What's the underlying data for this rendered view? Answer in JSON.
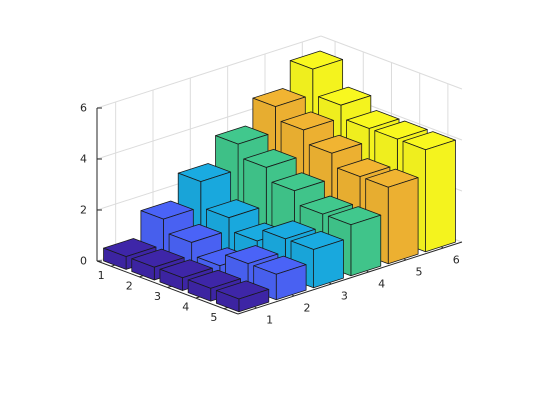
{
  "chart_data": {
    "type": "bar3",
    "title": "",
    "xlabel": "",
    "ylabel": "",
    "zlabel": "",
    "x_ticks": [
      "1",
      "2",
      "3",
      "4",
      "5",
      "6"
    ],
    "y_ticks": [
      "1",
      "2",
      "3",
      "4",
      "5"
    ],
    "z_ticks": [
      "0",
      "2",
      "4",
      "6"
    ],
    "xlim": [
      0.5,
      6.5
    ],
    "ylim": [
      0.5,
      5.5
    ],
    "zlim": [
      0,
      6
    ],
    "grid": true,
    "colormap": "parula",
    "colors": [
      "#3e26a8",
      "#4a63f7",
      "#1aabe1",
      "#41c88d",
      "#f1b432",
      "#f9f81f"
    ],
    "values": [
      [
        0.5,
        1.5,
        2.5,
        3.5,
        4.5,
        5.5
      ],
      [
        0.5,
        1.0,
        1.5,
        3.0,
        4.0,
        4.5
      ],
      [
        0.5,
        0.5,
        1.0,
        2.5,
        3.5,
        4.0
      ],
      [
        0.5,
        1.0,
        1.5,
        2.0,
        3.0,
        4.0
      ],
      [
        0.5,
        1.0,
        1.5,
        2.0,
        3.0,
        4.0
      ]
    ]
  }
}
